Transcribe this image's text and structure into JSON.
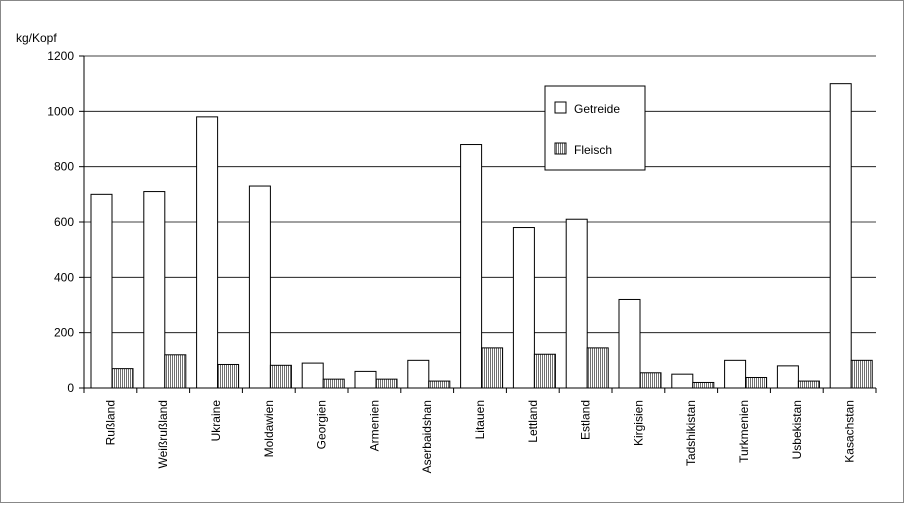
{
  "chart_data": {
    "type": "bar",
    "ylabel": "kg/Kopf",
    "ylim": [
      0,
      1200
    ],
    "yticks": [
      0,
      200,
      400,
      600,
      800,
      1000,
      1200
    ],
    "grid": true,
    "legend_position": "top-right",
    "categories": [
      "Rußland",
      "Weißrußland",
      "Ukraine",
      "Moldawien",
      "Georgien",
      "Armenien",
      "Aserbaidshan",
      "Litauen",
      "Lettland",
      "Estland",
      "Kirgisien",
      "Tadshikistan",
      "Turkmenien",
      "Usbekistan",
      "Kasachstan"
    ],
    "series": [
      {
        "name": "Getreide",
        "values": [
          700,
          710,
          980,
          730,
          90,
          60,
          100,
          880,
          580,
          610,
          320,
          50,
          100,
          80,
          1100
        ]
      },
      {
        "name": "Fleisch",
        "values": [
          70,
          120,
          85,
          82,
          32,
          32,
          25,
          145,
          122,
          145,
          55,
          20,
          38,
          25,
          100
        ]
      }
    ]
  }
}
